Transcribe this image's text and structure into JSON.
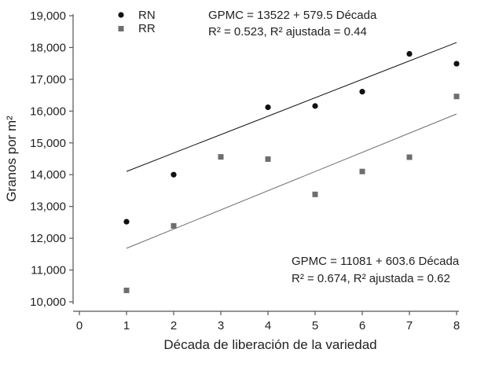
{
  "chart_data": {
    "type": "scatter",
    "xlabel": "Década de liberación de la variedad",
    "ylabel": "Granos por m²",
    "xlim": [
      0,
      8
    ],
    "ylim": [
      10000,
      19000
    ],
    "x_ticks": [
      "0",
      "1",
      "2",
      "3",
      "4",
      "5",
      "6",
      "7",
      "8"
    ],
    "y_ticks": [
      "10,000",
      "11,000",
      "12,000",
      "13,000",
      "14,000",
      "15,000",
      "16,000",
      "17,000",
      "18,000",
      "19,000"
    ],
    "grid": false,
    "legend_position": "top-left",
    "series": [
      {
        "name": "RN",
        "marker": "circle",
        "color": "#111111",
        "x": [
          1,
          2,
          4,
          5,
          6,
          7,
          8
        ],
        "y": [
          12520,
          14000,
          16120,
          16160,
          16610,
          17800,
          17490
        ],
        "fit": {
          "intercept": 13522,
          "slope": 579.5,
          "x_range": [
            1,
            8
          ]
        },
        "equation": "GPMC = 13522 + 579.5 Década",
        "r2_text": "R² = 0.523, R² ajustada = 0.44"
      },
      {
        "name": "RR",
        "marker": "square",
        "color": "#6e6e6e",
        "x": [
          1,
          2,
          3,
          4,
          5,
          6,
          7,
          8
        ],
        "y": [
          10360,
          12390,
          14560,
          14490,
          13380,
          14100,
          14550,
          16460
        ],
        "fit": {
          "intercept": 11081,
          "slope": 603.6,
          "x_range": [
            1,
            8
          ]
        },
        "equation": "GPMC = 11081 + 603.6 Década",
        "r2_text": "R² = 0.674, R² ajustada = 0.62"
      }
    ]
  }
}
